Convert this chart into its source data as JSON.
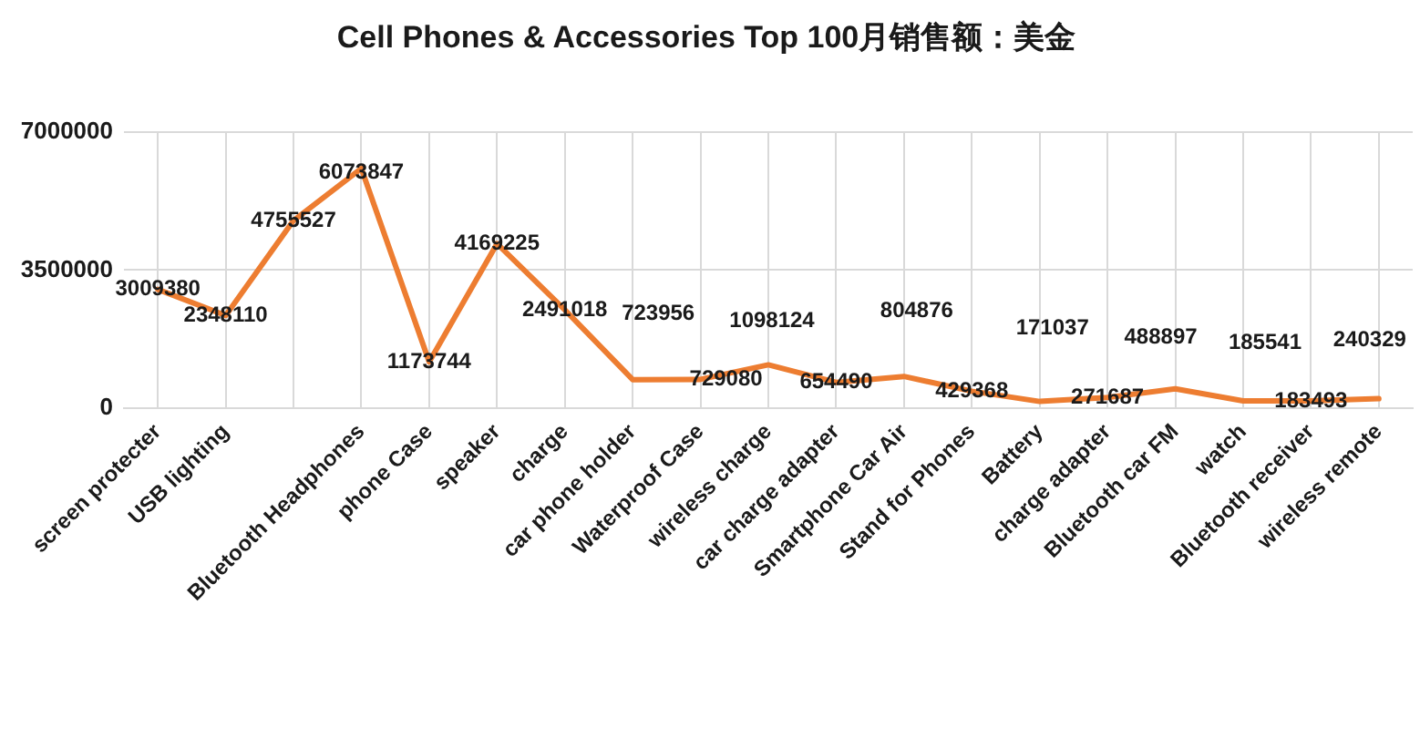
{
  "chart_data": {
    "type": "line",
    "title": "Cell Phones & Accessories Top 100月销售额：美金",
    "categories": [
      "screen protecter",
      "USB lighting",
      null,
      "Bluetooth Headphones",
      "phone Case",
      "speaker",
      "charge",
      "car phone holder",
      "Waterproof Case",
      "wireless charge",
      "car charge adapter",
      "Smartphone Car Air",
      "Stand for Phones",
      "Battery",
      "charge adapter",
      "Bluetooth car FM",
      "watch",
      "Bluetooth receiver",
      "wireless remote"
    ],
    "values": [
      3009380,
      2348110,
      4755527,
      6073847,
      1173744,
      4169225,
      2491018,
      723956,
      729080,
      1098124,
      654490,
      804876,
      429368,
      171037,
      271687,
      488897,
      185541,
      183493,
      240329
    ],
    "color": "#ed7d31",
    "ylim": [
      0,
      7000000
    ],
    "yticks": [
      0,
      3500000,
      7000000
    ],
    "grid": true,
    "data_labels": true
  }
}
